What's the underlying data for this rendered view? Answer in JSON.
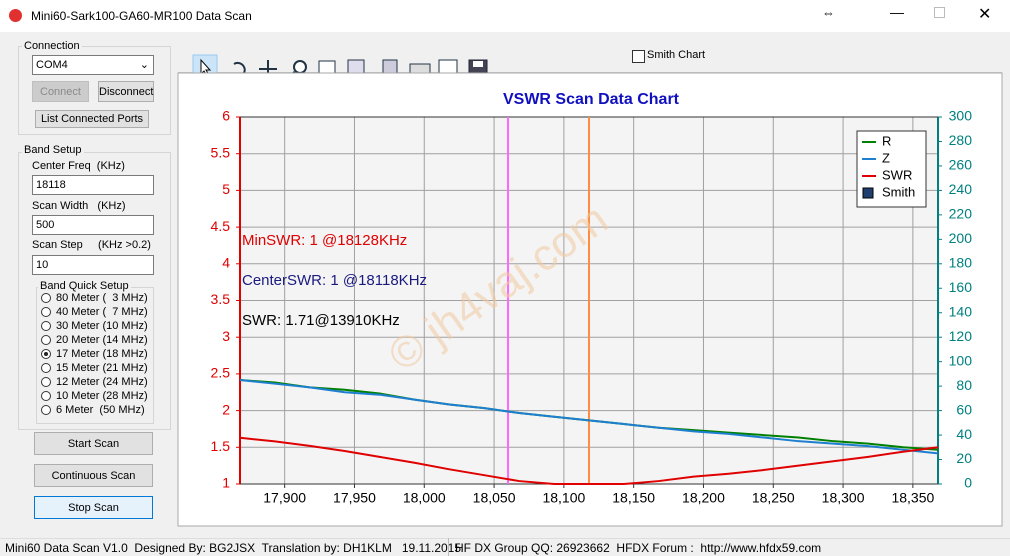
{
  "window": {
    "title": "Mini60-Sark100-GA60-MR100 Data Scan"
  },
  "connection": {
    "title": "Connection",
    "port": "COM4",
    "connect": "Connect",
    "disconnect": "Disconnect",
    "list_ports": "List Connected Ports"
  },
  "band_setup": {
    "title": "Band Setup",
    "center_label": "Center Freq  (KHz)",
    "center": "18118",
    "width_label": "Scan Width   (KHz)",
    "width": "500",
    "step_label": "Scan Step     (KHz >0.2)",
    "step": "10",
    "quick_title": "Band Quick Setup",
    "bands": [
      "80 Meter (  3 MHz)",
      "40 Meter (  7 MHz)",
      "30 Meter (10 MHz)",
      "20 Meter (14 MHz)",
      "17 Meter (18 MHz)",
      "15 Meter (21 MHz)",
      "12 Meter (24 MHz)",
      "10 Meter (28 MHz)",
      "6 Meter  (50 MHz)"
    ],
    "selected": 4
  },
  "buttons": [
    "Start Scan",
    "Continuous Scan",
    "Stop Scan"
  ],
  "toolbar": {
    "smith_checkbox": "Smith Chart"
  },
  "chart_data": {
    "type": "line",
    "title": "VSWR Scan Data Chart",
    "x": [
      17868,
      17893,
      17918,
      17943,
      17968,
      17993,
      18018,
      18043,
      18068,
      18093,
      18118,
      18143,
      18168,
      18193,
      18218,
      18243,
      18268,
      18293,
      18318,
      18343,
      18368
    ],
    "xlim": [
      17868,
      18368
    ],
    "xticks": [
      {
        "value": 17900,
        "label": "17,900"
      },
      {
        "value": 17950,
        "label": "17,950"
      },
      {
        "value": 18000,
        "label": "18,000"
      },
      {
        "value": 18050,
        "label": "18,050"
      },
      {
        "value": 18100,
        "label": "18,100"
      },
      {
        "value": 18150,
        "label": "18,150"
      },
      {
        "value": 18200,
        "label": "18,200"
      },
      {
        "value": 18250,
        "label": "18,250"
      },
      {
        "value": 18300,
        "label": "18,300"
      },
      {
        "value": 18350,
        "label": "18,350"
      }
    ],
    "ylim": [
      1,
      6
    ],
    "yticks": [
      1,
      1.5,
      2,
      2.5,
      3,
      3.5,
      4,
      4.5,
      5,
      5.5,
      6
    ],
    "y2lim": [
      0,
      300
    ],
    "y2ticks": [
      0,
      20,
      40,
      60,
      80,
      100,
      120,
      140,
      160,
      180,
      200,
      220,
      240,
      260,
      280,
      300
    ],
    "series": [
      {
        "name": "R",
        "color": "#008000",
        "axis": "y2",
        "values": [
          85,
          83,
          79,
          77,
          74,
          69,
          65,
          62,
          58,
          55,
          52,
          49,
          46,
          44,
          42,
          40,
          38,
          35,
          33,
          30,
          28
        ]
      },
      {
        "name": "Z",
        "color": "#1e7fd0",
        "axis": "y2",
        "values": [
          85,
          82,
          79,
          75,
          73,
          69,
          65,
          62,
          58,
          55,
          52,
          49,
          46,
          43,
          41,
          38,
          35,
          33,
          31,
          28,
          25
        ]
      },
      {
        "name": "SWR",
        "color": "#e00000",
        "values": [
          1.63,
          1.58,
          1.52,
          1.45,
          1.37,
          1.29,
          1.2,
          1.12,
          1.04,
          1.0,
          1.0,
          1.0,
          1.04,
          1.1,
          1.14,
          1.19,
          1.25,
          1.31,
          1.37,
          1.44,
          1.5
        ]
      }
    ],
    "legend_extra": {
      "name": "Smith",
      "color": "#1f3f6f"
    },
    "markers": [
      {
        "x": 18060,
        "color": "#ff66ff"
      },
      {
        "x": 18118,
        "color": "#ff8c40"
      }
    ],
    "annotations": [
      {
        "text": "MinSWR: 1 @18128KHz",
        "color": "#e00000"
      },
      {
        "text": "CenterSWR: 1 @18118KHz",
        "color": "#1a1a80"
      },
      {
        "text": "SWR: 1.71@13910KHz",
        "color": "#000000"
      }
    ],
    "watermark": "© jh4vaj.com",
    "grid": true,
    "legend": "upper right"
  },
  "status": [
    "Mini60 Data Scan V1.0  Designed By: BG2JSX  Translation by: DH1KLM   19.11.2015",
    "HF DX Group QQ: 26923662  HFDX Forum :  http://www.hfdx59.com"
  ]
}
